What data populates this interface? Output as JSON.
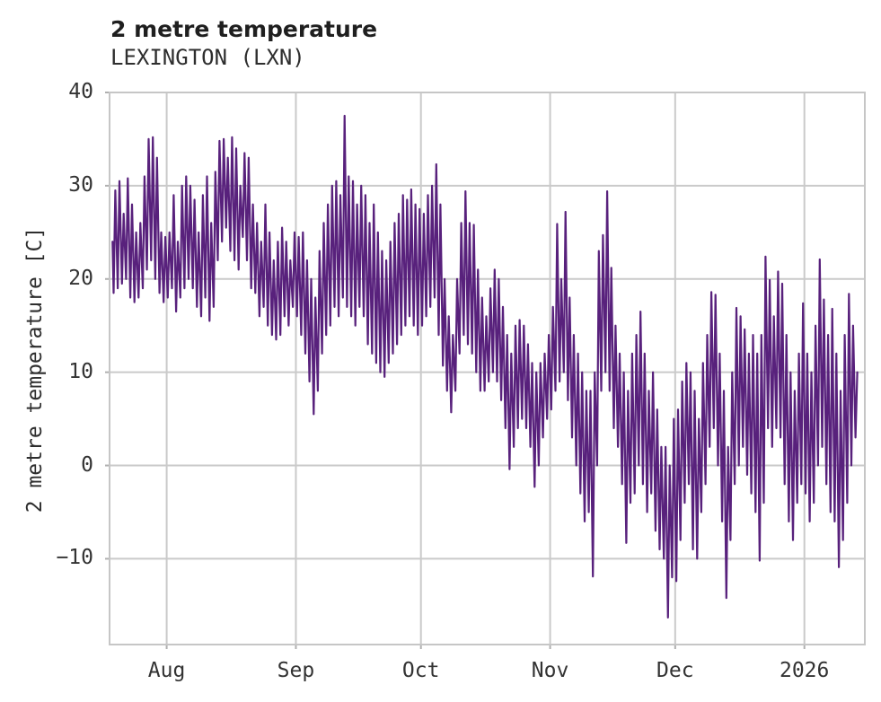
{
  "header": {
    "title": "2 metre temperature",
    "subtitle": "LEXINGTON (LXN)"
  },
  "chart_data": {
    "type": "line",
    "title": "2 metre temperature",
    "subtitle": "LEXINGTON (LXN)",
    "xlabel": "",
    "ylabel": "2 metre temperature [C]",
    "legend": "none",
    "grid": "on",
    "background": "#ffffff",
    "line_color": "#58217c",
    "grid_color": "#cacaca",
    "border_color": "#c6c6c6",
    "tick_color": "#b0b0b0",
    "text_color": "#333333",
    "ylim": [
      -19.2,
      40
    ],
    "yticks": [
      40,
      30,
      20,
      10,
      0,
      -10
    ],
    "ytick_labels": [
      "40",
      "30",
      "20",
      "10",
      "0",
      "−10"
    ],
    "x_domain_days": [
      -0.7,
      180.5
    ],
    "start_date": "2025-07-19",
    "xticks": [
      {
        "label": "Aug",
        "day": 13
      },
      {
        "label": "Sep",
        "day": 44
      },
      {
        "label": "Oct",
        "day": 74
      },
      {
        "label": "Nov",
        "day": 105
      },
      {
        "label": "Dec",
        "day": 135
      },
      {
        "label": "2026",
        "day": 166
      }
    ],
    "sampling_note": "hourly-looking trace summarized as daily min/max extremes read from the plot; rendered as two points per day (min ~06h, max ~16h)",
    "series": [
      {
        "name": "2 metre temperature [C]",
        "daily_max": [
          29.5,
          30.5,
          27.0,
          30.8,
          28.0,
          25.0,
          26.0,
          31.0,
          35.0,
          35.2,
          33.0,
          25.0,
          24.5,
          25.0,
          29.0,
          24.0,
          30.0,
          31.0,
          30.0,
          28.5,
          25.0,
          29.0,
          31.0,
          26.0,
          31.5,
          34.8,
          35.0,
          33.0,
          35.2,
          34.0,
          30.0,
          33.5,
          33.0,
          28.0,
          26.0,
          24.0,
          28.0,
          25.0,
          22.0,
          24.0,
          25.5,
          24.0,
          22.0,
          25.0,
          24.5,
          25.0,
          22.0,
          20.0,
          18.0,
          23.0,
          26.0,
          28.0,
          30.0,
          30.5,
          29.0,
          37.5,
          31.0,
          30.5,
          28.0,
          30.0,
          29.0,
          26.0,
          28.0,
          25.0,
          23.0,
          22.0,
          24.0,
          26.0,
          27.0,
          29.0,
          28.5,
          29.6,
          28.0,
          27.5,
          27.0,
          29.0,
          30.0,
          32.3,
          28.0,
          20.0,
          16.0,
          14.0,
          20.0,
          26.0,
          29.4,
          26.0,
          25.8,
          21.0,
          18.0,
          16.0,
          19.0,
          21.0,
          20.0,
          17.0,
          14.0,
          12.0,
          15.0,
          15.6,
          15.0,
          13.0,
          11.0,
          10.0,
          11.0,
          12.0,
          14.0,
          17.0,
          25.9,
          20.0,
          27.2,
          18.0,
          14.0,
          12.0,
          10.0,
          8.0,
          8.0,
          10.0,
          23.0,
          24.7,
          29.4,
          21.2,
          15.0,
          12.0,
          10.0,
          8.0,
          12.0,
          14.0,
          16.5,
          12.0,
          8.0,
          10.0,
          6.0,
          2.0,
          2.0,
          0.0,
          5.0,
          6.0,
          9.0,
          11.0,
          10.0,
          8.0,
          5.0,
          11.0,
          14.0,
          18.6,
          18.3,
          12.0,
          8.0,
          2.0,
          10.0,
          16.9,
          16.0,
          14.6,
          12.0,
          14.0,
          12.0,
          14.0,
          22.4,
          19.9,
          16.0,
          20.8,
          19.5,
          14.0,
          10.0,
          8.0,
          12.0,
          17.4,
          12.0,
          10.0,
          15.0,
          22.1,
          17.8,
          14.0,
          16.8,
          12.0,
          8.0,
          14.0,
          18.4,
          15.0,
          10.0
        ],
        "daily_min": [
          18.5,
          19.0,
          19.5,
          20.0,
          18.0,
          17.5,
          18.0,
          19.0,
          21.0,
          22.0,
          20.0,
          18.5,
          17.5,
          18.0,
          19.0,
          16.5,
          18.0,
          19.0,
          20.0,
          19.0,
          17.0,
          16.0,
          18.0,
          15.5,
          17.0,
          22.0,
          24.0,
          25.5,
          23.0,
          22.0,
          21.0,
          24.5,
          22.0,
          19.0,
          18.5,
          16.0,
          17.0,
          15.0,
          14.0,
          13.5,
          14.0,
          16.0,
          15.0,
          17.0,
          16.0,
          14.0,
          12.0,
          9.0,
          5.5,
          8.0,
          12.0,
          14.0,
          15.0,
          17.0,
          16.0,
          18.0,
          17.0,
          16.0,
          15.0,
          17.0,
          16.0,
          13.0,
          12.0,
          11.0,
          10.0,
          9.5,
          11.0,
          12.0,
          13.0,
          14.0,
          15.0,
          16.0,
          15.0,
          14.0,
          15.0,
          16.0,
          17.0,
          18.0,
          14.0,
          10.7,
          8.0,
          5.7,
          8.0,
          12.0,
          14.0,
          13.0,
          12.0,
          10.0,
          8.0,
          8.0,
          9.0,
          10.0,
          9.0,
          7.0,
          4.0,
          -0.4,
          2.0,
          4.0,
          5.0,
          4.0,
          2.0,
          -2.3,
          0.0,
          3.0,
          5.0,
          6.0,
          8.0,
          9.0,
          10.0,
          7.0,
          3.0,
          0.0,
          -3.0,
          -6.0,
          -5.0,
          -11.9,
          0.0,
          8.0,
          10.0,
          8.0,
          4.0,
          2.0,
          -2.0,
          -8.3,
          -4.0,
          -3.0,
          0.0,
          -2.0,
          -5.0,
          -3.0,
          -7.0,
          -9.0,
          -10.0,
          -16.3,
          -12.0,
          -12.4,
          -8.0,
          -4.0,
          -2.0,
          -9.0,
          -10.0,
          -5.0,
          -2.0,
          2.0,
          4.0,
          0.0,
          -6.0,
          -14.2,
          -8.0,
          -2.0,
          0.0,
          2.0,
          -1.0,
          -3.0,
          -5.0,
          -10.2,
          -4.0,
          4.0,
          2.0,
          4.0,
          3.0,
          -2.0,
          -6.0,
          -8.0,
          -4.0,
          -2.0,
          -3.0,
          -6.0,
          -4.0,
          0.0,
          2.0,
          -2.0,
          -5.0,
          -6.0,
          -10.9,
          -8.0,
          -4.0,
          0.0,
          3.0
        ]
      }
    ]
  }
}
